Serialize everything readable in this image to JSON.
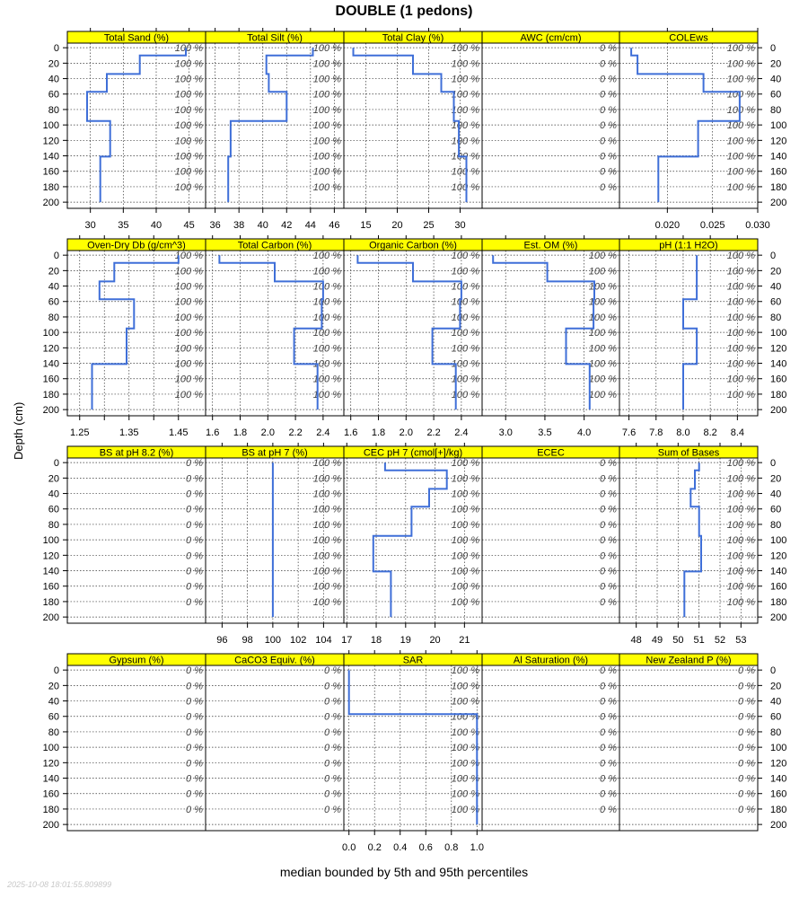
{
  "title": "DOUBLE (1 pedons)",
  "y_axis_label": "Depth (cm)",
  "x_axis_label": "median bounded by 5th and 95th percentiles",
  "timestamp": "2025-10-08 18:01:55.809899",
  "colors": {
    "strip": "#ffff00",
    "line": "#3f6fd8",
    "grid": "#333333",
    "frame": "#000000",
    "label": "#444444"
  },
  "depth_ticks": [
    0,
    20,
    40,
    60,
    80,
    100,
    120,
    140,
    160,
    180,
    200
  ],
  "label_depths": [
    0,
    20,
    40,
    60,
    80,
    100,
    120,
    140,
    160,
    180
  ],
  "chart_data": [
    {
      "type": "line",
      "title": "Total Sand (%)",
      "xlim": [
        26.5,
        47.5
      ],
      "xticks": [
        30,
        35,
        40,
        45
      ],
      "xtick_labels": [
        "30",
        "35",
        "40",
        "45"
      ],
      "pct": "100 %",
      "steps": [
        [
          0,
          10,
          44.5
        ],
        [
          10,
          34,
          37.5
        ],
        [
          34,
          57,
          32.5
        ],
        [
          57,
          95,
          29.5
        ],
        [
          95,
          141,
          33.0
        ],
        [
          141,
          200,
          31.5
        ]
      ]
    },
    {
      "type": "line",
      "title": "Total Silt (%)",
      "xlim": [
        35.2,
        46.8
      ],
      "xticks": [
        36,
        38,
        40,
        42,
        44,
        46
      ],
      "xtick_labels": [
        "36",
        "38",
        "40",
        "42",
        "44",
        "46"
      ],
      "pct": "100 %",
      "steps": [
        [
          0,
          10,
          44.2
        ],
        [
          10,
          34,
          40.3
        ],
        [
          34,
          57,
          40.5
        ],
        [
          57,
          95,
          42.0
        ],
        [
          95,
          141,
          37.3
        ],
        [
          141,
          200,
          37.1
        ]
      ]
    },
    {
      "type": "line",
      "title": "Total Clay (%)",
      "xlim": [
        11.5,
        33.5
      ],
      "xticks": [
        15,
        20,
        25,
        30
      ],
      "xtick_labels": [
        "15",
        "20",
        "25",
        "30"
      ],
      "pct": "100 %",
      "steps": [
        [
          0,
          10,
          13.0
        ],
        [
          10,
          34,
          22.5
        ],
        [
          34,
          57,
          27.0
        ],
        [
          57,
          95,
          29.0
        ],
        [
          95,
          141,
          29.8
        ],
        [
          141,
          200,
          31.0
        ]
      ]
    },
    {
      "type": "line",
      "title": "AWC (cm/cm)",
      "xlim": [
        0,
        1
      ],
      "xticks": [],
      "xtick_labels": [],
      "pct": "0 %",
      "steps": []
    },
    {
      "type": "line",
      "title": "COLEws",
      "xlim": [
        0.0147,
        0.03
      ],
      "xticks": [
        0.02,
        0.025,
        0.03
      ],
      "xtick_labels": [
        "0.020",
        "0.025",
        "0.030"
      ],
      "pct": "100 %",
      "steps": [
        [
          0,
          10,
          0.016
        ],
        [
          10,
          34,
          0.0167
        ],
        [
          34,
          57,
          0.024
        ],
        [
          57,
          95,
          0.028
        ],
        [
          95,
          141,
          0.0234
        ],
        [
          141,
          200,
          0.019
        ]
      ]
    },
    {
      "type": "line",
      "title": "Oven-Dry Db (g/cm^3)",
      "xlim": [
        1.225,
        1.505
      ],
      "xticks": [
        1.25,
        1.3,
        1.35,
        1.4,
        1.45
      ],
      "xtick_labels": [
        "1.25",
        "",
        "1.35",
        "",
        "1.45"
      ],
      "pct": "100 %",
      "steps": [
        [
          0,
          10,
          1.45
        ],
        [
          10,
          34,
          1.32
        ],
        [
          34,
          57,
          1.29
        ],
        [
          57,
          95,
          1.36
        ],
        [
          95,
          141,
          1.345
        ],
        [
          141,
          200,
          1.275
        ]
      ]
    },
    {
      "type": "line",
      "title": "Total Carbon (%)",
      "xlim": [
        1.55,
        2.55
      ],
      "xticks": [
        1.6,
        1.8,
        2.0,
        2.2,
        2.4
      ],
      "xtick_labels": [
        "1.6",
        "1.8",
        "2.0",
        "2.2",
        "2.4"
      ],
      "pct": "100 %",
      "steps": [
        [
          0,
          10,
          1.65
        ],
        [
          10,
          34,
          2.05
        ],
        [
          34,
          57,
          2.4
        ],
        [
          57,
          95,
          2.39
        ],
        [
          95,
          141,
          2.19
        ],
        [
          141,
          200,
          2.36
        ]
      ]
    },
    {
      "type": "line",
      "title": "Organic Carbon (%)",
      "xlim": [
        1.55,
        2.55
      ],
      "xticks": [
        1.6,
        1.8,
        2.0,
        2.2,
        2.4
      ],
      "xtick_labels": [
        "1.6",
        "1.8",
        "2.0",
        "2.2",
        "2.4"
      ],
      "pct": "100 %",
      "steps": [
        [
          0,
          10,
          1.65
        ],
        [
          10,
          34,
          2.05
        ],
        [
          34,
          57,
          2.4
        ],
        [
          57,
          95,
          2.39
        ],
        [
          95,
          141,
          2.19
        ],
        [
          141,
          200,
          2.36
        ]
      ]
    },
    {
      "type": "line",
      "title": "Est. OM (%)",
      "xlim": [
        2.7,
        4.45
      ],
      "xticks": [
        3.0,
        3.5,
        4.0
      ],
      "xtick_labels": [
        "3.0",
        "3.5",
        "4.0"
      ],
      "pct": "100 %",
      "steps": [
        [
          0,
          10,
          2.84
        ],
        [
          10,
          34,
          3.53
        ],
        [
          34,
          57,
          4.13
        ],
        [
          57,
          95,
          4.12
        ],
        [
          95,
          141,
          3.77
        ],
        [
          141,
          200,
          4.07
        ]
      ]
    },
    {
      "type": "line",
      "title": "pH (1:1 H2O)",
      "xlim": [
        7.53,
        8.55
      ],
      "xticks": [
        7.6,
        7.8,
        8.0,
        8.2,
        8.4
      ],
      "xtick_labels": [
        "7.6",
        "7.8",
        "8.0",
        "8.2",
        "8.4"
      ],
      "pct": "100 %",
      "steps": [
        [
          0,
          57,
          8.1
        ],
        [
          57,
          95,
          8.0
        ],
        [
          95,
          141,
          8.1
        ],
        [
          141,
          200,
          8.0
        ]
      ]
    },
    {
      "type": "line",
      "title": "BS at pH 8.2 (%)",
      "xlim": [
        0,
        1
      ],
      "xticks": [],
      "xtick_labels": [],
      "pct": "0 %",
      "steps": []
    },
    {
      "type": "line",
      "title": "BS at pH 7 (%)",
      "xlim": [
        94.7,
        105.6
      ],
      "xticks": [
        96,
        98,
        100,
        102,
        104
      ],
      "xtick_labels": [
        "96",
        "98",
        "100",
        "102",
        "104"
      ],
      "pct": "100 %",
      "steps": [
        [
          0,
          200,
          100
        ]
      ]
    },
    {
      "type": "line",
      "title": "CEC pH 7 (cmol[+]/kg)",
      "xlim": [
        16.9,
        21.6
      ],
      "xticks": [
        17,
        18,
        19,
        20,
        21
      ],
      "xtick_labels": [
        "17",
        "18",
        "19",
        "20",
        "21"
      ],
      "pct": "100 %",
      "steps": [
        [
          0,
          10,
          18.3
        ],
        [
          10,
          34,
          20.4
        ],
        [
          34,
          57,
          19.8
        ],
        [
          57,
          95,
          19.2
        ],
        [
          95,
          141,
          17.9
        ],
        [
          141,
          200,
          18.5
        ]
      ]
    },
    {
      "type": "line",
      "title": "ECEC",
      "xlim": [
        0,
        1
      ],
      "xticks": [],
      "xtick_labels": [],
      "pct": "0 %",
      "steps": []
    },
    {
      "type": "line",
      "title": "Sum of Bases",
      "xlim": [
        47.2,
        53.8
      ],
      "xticks": [
        48,
        49,
        50,
        51,
        52,
        53
      ],
      "xtick_labels": [
        "48",
        "49",
        "50",
        "51",
        "52",
        "53"
      ],
      "pct": "100 %",
      "steps": [
        [
          0,
          10,
          51.0
        ],
        [
          10,
          34,
          50.8
        ],
        [
          34,
          57,
          50.6
        ],
        [
          57,
          95,
          51.0
        ],
        [
          95,
          141,
          51.1
        ],
        [
          141,
          200,
          50.3
        ]
      ]
    },
    {
      "type": "line",
      "title": "Gypsum (%)",
      "xlim": [
        0,
        1
      ],
      "xticks": [],
      "xtick_labels": [],
      "pct": "0 %",
      "steps": []
    },
    {
      "type": "line",
      "title": "CaCO3 Equiv. (%)",
      "xlim": [
        0,
        1
      ],
      "xticks": [],
      "xtick_labels": [],
      "pct": "0 %",
      "steps": []
    },
    {
      "type": "line",
      "title": "SAR",
      "xlim": [
        -0.04,
        1.04
      ],
      "xticks": [
        0,
        0.2,
        0.4,
        0.6,
        0.8,
        1.0
      ],
      "xtick_labels": [
        "0.0",
        "0.2",
        "0.4",
        "0.6",
        "0.8",
        "1.0"
      ],
      "pct": "100 %",
      "steps": [
        [
          0,
          57,
          0
        ],
        [
          57,
          200,
          1
        ]
      ]
    },
    {
      "type": "line",
      "title": "Al Saturation (%)",
      "xlim": [
        0,
        1
      ],
      "xticks": [],
      "xtick_labels": [],
      "pct": "0 %",
      "steps": []
    },
    {
      "type": "line",
      "title": "New Zealand P (%)",
      "xlim": [
        0,
        1
      ],
      "xticks": [],
      "xtick_labels": [],
      "pct": "0 %",
      "steps": []
    }
  ]
}
